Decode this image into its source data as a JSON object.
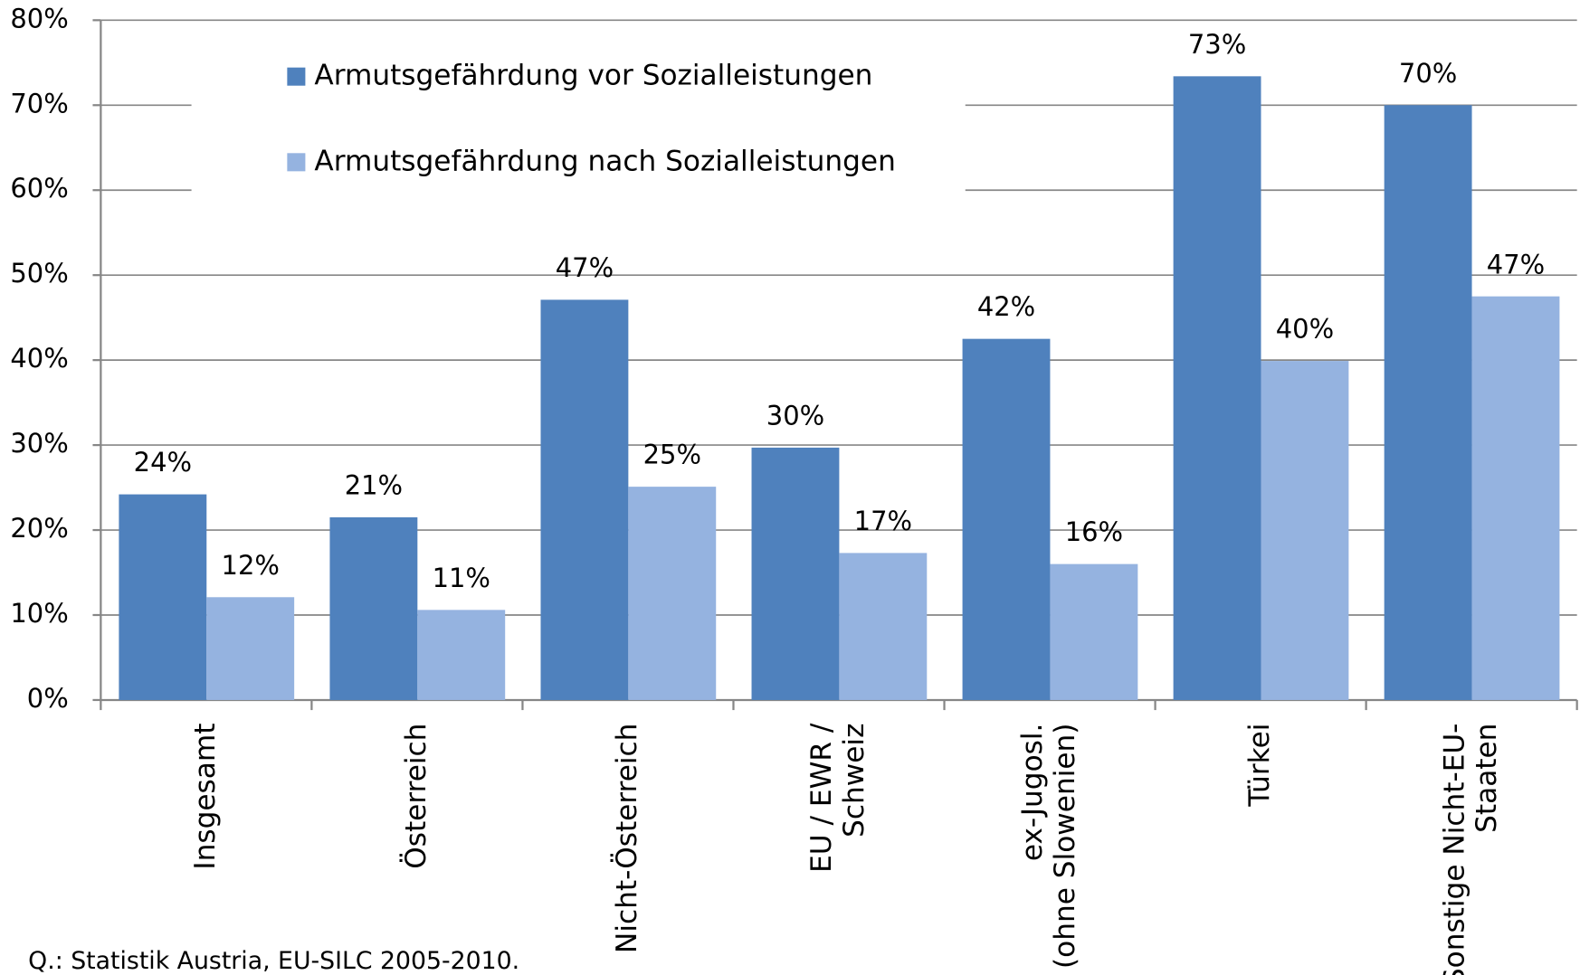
{
  "chart_data": {
    "type": "bar",
    "categories": [
      "Insgesamt",
      "Österreich",
      "Nicht-Österreich",
      "EU / EWR /\nSchweiz",
      "ex-Jugosl.\n(ohne Slowenien)",
      "Türkei",
      "Sonstige Nicht-EU-\nStaaten"
    ],
    "series": [
      {
        "name": "Armutsgefährdung vor Sozialleistungen",
        "color": "#4f81bd",
        "values": [
          24.2,
          21.5,
          47.1,
          29.7,
          42.5,
          73.4,
          70.0
        ],
        "value_labels": [
          "24%",
          "21%",
          "47%",
          "30%",
          "42%",
          "73%",
          "70%"
        ]
      },
      {
        "name": "Armutsgefährdung nach Sozialleistungen",
        "color": "#95b3e0",
        "values": [
          12.1,
          10.6,
          25.1,
          17.3,
          16.0,
          39.9,
          47.5
        ],
        "value_labels": [
          "12%",
          "11%",
          "25%",
          "17%",
          "16%",
          "40%",
          "47%"
        ]
      }
    ],
    "ylim": [
      0,
      80
    ],
    "yticks": [
      {
        "value": 0,
        "label": "0%"
      },
      {
        "value": 10,
        "label": "10%"
      },
      {
        "value": 20,
        "label": "20%"
      },
      {
        "value": 30,
        "label": "30%"
      },
      {
        "value": 40,
        "label": "40%"
      },
      {
        "value": 50,
        "label": "50%"
      },
      {
        "value": 60,
        "label": "60%"
      },
      {
        "value": 70,
        "label": "70%"
      },
      {
        "value": 80,
        "label": "80%"
      }
    ],
    "grid": true,
    "legend": "top",
    "source": "Q.: Statistik Austria, EU-SILC 2005-2010."
  }
}
